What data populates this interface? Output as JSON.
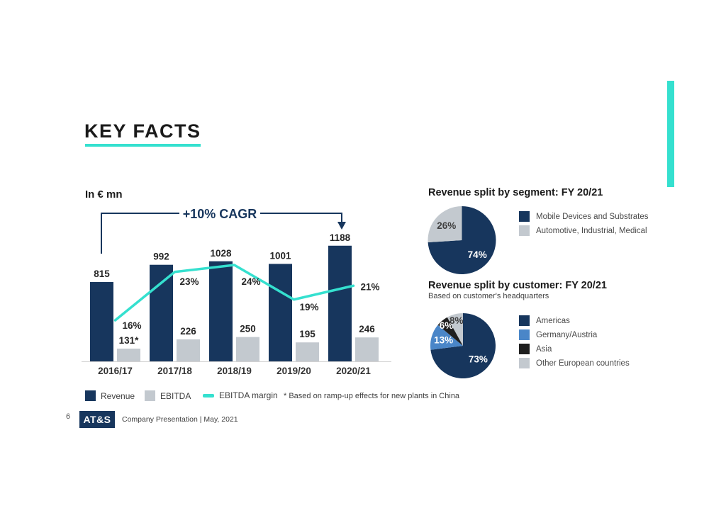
{
  "page": {
    "title": "KEY FACTS",
    "page_number": "6",
    "logo_text": "AT&S",
    "footer_text": "Company Presentation |  May, 2021"
  },
  "colors": {
    "navy": "#17365D",
    "light_gray": "#C3C9CF",
    "teal": "#35E0CF",
    "mid_blue": "#4A86C8",
    "near_black": "#1F1F1F",
    "label_dark": "#262626",
    "axis_gray": "#D2D2D2"
  },
  "chart_data": [
    {
      "type": "bar",
      "subtype": "grouped-bars-with-margin-line",
      "title": "In € mn",
      "categories": [
        "2016/17",
        "2017/18",
        "2018/19",
        "2019/20",
        "2020/21"
      ],
      "series": [
        {
          "name": "Revenue",
          "values": [
            815,
            992,
            1028,
            1001,
            1188
          ],
          "labels": [
            "815",
            "992",
            "1028",
            "1001",
            "1188"
          ],
          "color": "#17365D"
        },
        {
          "name": "EBITDA",
          "values": [
            131,
            226,
            250,
            195,
            246
          ],
          "labels": [
            "131*",
            "226",
            "250",
            "195",
            "246"
          ],
          "color": "#C3C9CF"
        }
      ],
      "line_series": {
        "name": "EBITDA margin",
        "values": [
          16,
          23,
          24,
          19,
          21
        ],
        "labels": [
          "16%",
          "23%",
          "24%",
          "19%",
          "21%"
        ],
        "color": "#35E0CF"
      },
      "annotation": "+10% CAGR",
      "footnote": "* Based on ramp-up effects for new plants in China",
      "ylim": [
        0,
        1300
      ],
      "grid": false,
      "legend_position": "bottom"
    },
    {
      "type": "pie",
      "title": "Revenue split by segment: FY 20/21",
      "legend_position": "right",
      "slices": [
        {
          "label": "Mobile Devices and Substrates",
          "value": 74,
          "display": "74%",
          "color": "#17365D",
          "text_color": "#FFFFFF"
        },
        {
          "label": "Automotive, Industrial, Medical",
          "value": 26,
          "display": "26%",
          "color": "#C3C9CF",
          "text_color": "#404040"
        }
      ]
    },
    {
      "type": "pie",
      "title": "Revenue split by customer: FY 20/21",
      "subtitle": "Based on customer's headquarters",
      "legend_position": "right",
      "slices": [
        {
          "label": "Americas",
          "value": 73,
          "display": "73%",
          "color": "#17365D",
          "text_color": "#FFFFFF"
        },
        {
          "label": "Germany/Austria",
          "value": 13,
          "display": "13%",
          "color": "#4A86C8",
          "text_color": "#FFFFFF"
        },
        {
          "label": "Asia",
          "value": 6,
          "display": "6%",
          "color": "#1F1F1F",
          "text_color": "#FFFFFF"
        },
        {
          "label": "Other European countries",
          "value": 8,
          "display": "8%",
          "color": "#C3C9CF",
          "text_color": "#404040"
        }
      ]
    }
  ]
}
